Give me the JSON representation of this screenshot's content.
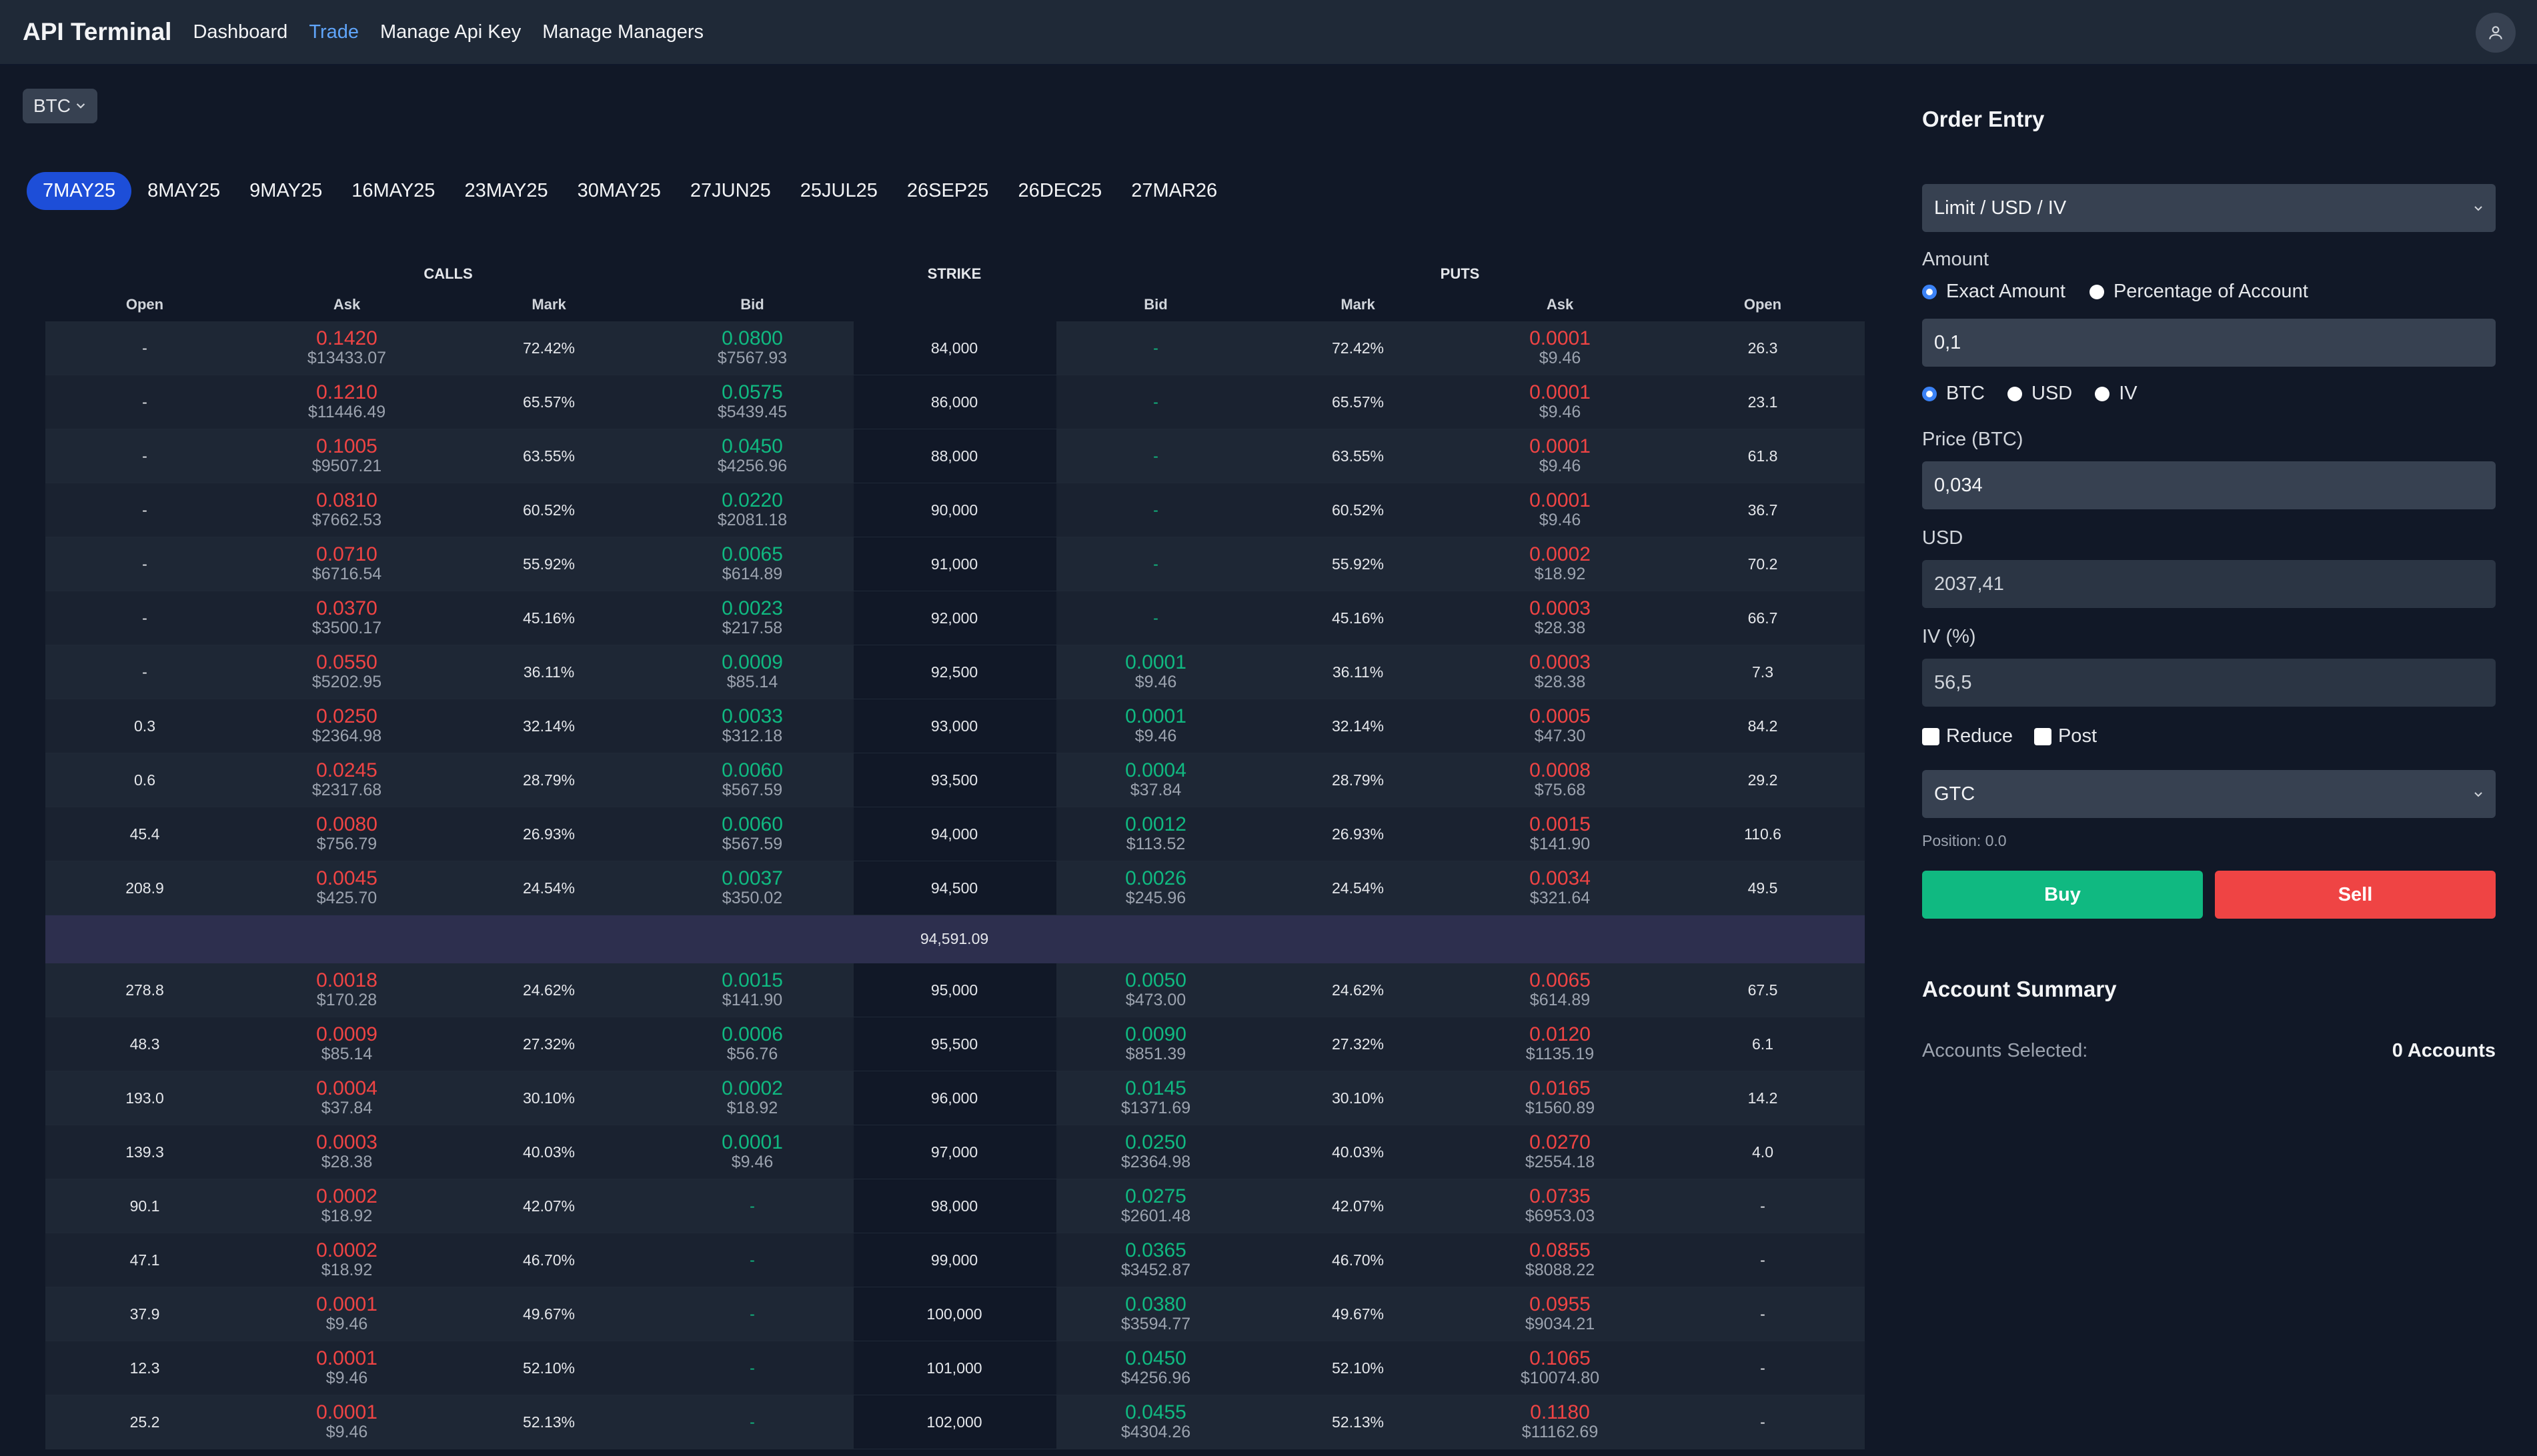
{
  "nav": {
    "brand": "API Terminal",
    "links": [
      "Dashboard",
      "Trade",
      "Manage Api Key",
      "Manage Managers"
    ],
    "active": "Trade"
  },
  "asset_select": {
    "value": "BTC"
  },
  "expiries": [
    "7MAY25",
    "8MAY25",
    "9MAY25",
    "16MAY25",
    "23MAY25",
    "30MAY25",
    "27JUN25",
    "25JUL25",
    "26SEP25",
    "26DEC25",
    "27MAR26"
  ],
  "active_expiry": "7MAY25",
  "table": {
    "group_headers": {
      "calls": "CALLS",
      "strike": "STRIKE",
      "puts": "PUTS"
    },
    "columns": [
      "Open",
      "Ask",
      "Mark",
      "Bid",
      "",
      "Bid",
      "Mark",
      "Ask",
      "Open"
    ],
    "atm_price": "94,591.09",
    "rows_above": [
      {
        "c_open": "-",
        "c_ask": "0.1420",
        "c_ask_usd": "$13433.07",
        "c_mark": "72.42%",
        "c_bid": "0.0800",
        "c_bid_usd": "$7567.93",
        "strike": "84,000",
        "p_bid": "-",
        "p_bid_usd": "",
        "p_mark": "72.42%",
        "p_ask": "0.0001",
        "p_ask_usd": "$9.46",
        "p_open": "26.3"
      },
      {
        "c_open": "-",
        "c_ask": "0.1210",
        "c_ask_usd": "$11446.49",
        "c_mark": "65.57%",
        "c_bid": "0.0575",
        "c_bid_usd": "$5439.45",
        "strike": "86,000",
        "p_bid": "-",
        "p_bid_usd": "",
        "p_mark": "65.57%",
        "p_ask": "0.0001",
        "p_ask_usd": "$9.46",
        "p_open": "23.1"
      },
      {
        "c_open": "-",
        "c_ask": "0.1005",
        "c_ask_usd": "$9507.21",
        "c_mark": "63.55%",
        "c_bid": "0.0450",
        "c_bid_usd": "$4256.96",
        "strike": "88,000",
        "p_bid": "-",
        "p_bid_usd": "",
        "p_mark": "63.55%",
        "p_ask": "0.0001",
        "p_ask_usd": "$9.46",
        "p_open": "61.8"
      },
      {
        "c_open": "-",
        "c_ask": "0.0810",
        "c_ask_usd": "$7662.53",
        "c_mark": "60.52%",
        "c_bid": "0.0220",
        "c_bid_usd": "$2081.18",
        "strike": "90,000",
        "p_bid": "-",
        "p_bid_usd": "",
        "p_mark": "60.52%",
        "p_ask": "0.0001",
        "p_ask_usd": "$9.46",
        "p_open": "36.7"
      },
      {
        "c_open": "-",
        "c_ask": "0.0710",
        "c_ask_usd": "$6716.54",
        "c_mark": "55.92%",
        "c_bid": "0.0065",
        "c_bid_usd": "$614.89",
        "strike": "91,000",
        "p_bid": "-",
        "p_bid_usd": "",
        "p_mark": "55.92%",
        "p_ask": "0.0002",
        "p_ask_usd": "$18.92",
        "p_open": "70.2"
      },
      {
        "c_open": "-",
        "c_ask": "0.0370",
        "c_ask_usd": "$3500.17",
        "c_mark": "45.16%",
        "c_bid": "0.0023",
        "c_bid_usd": "$217.58",
        "strike": "92,000",
        "p_bid": "-",
        "p_bid_usd": "",
        "p_mark": "45.16%",
        "p_ask": "0.0003",
        "p_ask_usd": "$28.38",
        "p_open": "66.7"
      },
      {
        "c_open": "-",
        "c_ask": "0.0550",
        "c_ask_usd": "$5202.95",
        "c_mark": "36.11%",
        "c_bid": "0.0009",
        "c_bid_usd": "$85.14",
        "strike": "92,500",
        "p_bid": "0.0001",
        "p_bid_usd": "$9.46",
        "p_mark": "36.11%",
        "p_ask": "0.0003",
        "p_ask_usd": "$28.38",
        "p_open": "7.3"
      },
      {
        "c_open": "0.3",
        "c_ask": "0.0250",
        "c_ask_usd": "$2364.98",
        "c_mark": "32.14%",
        "c_bid": "0.0033",
        "c_bid_usd": "$312.18",
        "strike": "93,000",
        "p_bid": "0.0001",
        "p_bid_usd": "$9.46",
        "p_mark": "32.14%",
        "p_ask": "0.0005",
        "p_ask_usd": "$47.30",
        "p_open": "84.2"
      },
      {
        "c_open": "0.6",
        "c_ask": "0.0245",
        "c_ask_usd": "$2317.68",
        "c_mark": "28.79%",
        "c_bid": "0.0060",
        "c_bid_usd": "$567.59",
        "strike": "93,500",
        "p_bid": "0.0004",
        "p_bid_usd": "$37.84",
        "p_mark": "28.79%",
        "p_ask": "0.0008",
        "p_ask_usd": "$75.68",
        "p_open": "29.2"
      },
      {
        "c_open": "45.4",
        "c_ask": "0.0080",
        "c_ask_usd": "$756.79",
        "c_mark": "26.93%",
        "c_bid": "0.0060",
        "c_bid_usd": "$567.59",
        "strike": "94,000",
        "p_bid": "0.0012",
        "p_bid_usd": "$113.52",
        "p_mark": "26.93%",
        "p_ask": "0.0015",
        "p_ask_usd": "$141.90",
        "p_open": "110.6"
      },
      {
        "c_open": "208.9",
        "c_ask": "0.0045",
        "c_ask_usd": "$425.70",
        "c_mark": "24.54%",
        "c_bid": "0.0037",
        "c_bid_usd": "$350.02",
        "strike": "94,500",
        "p_bid": "0.0026",
        "p_bid_usd": "$245.96",
        "p_mark": "24.54%",
        "p_ask": "0.0034",
        "p_ask_usd": "$321.64",
        "p_open": "49.5"
      }
    ],
    "rows_below": [
      {
        "c_open": "278.8",
        "c_ask": "0.0018",
        "c_ask_usd": "$170.28",
        "c_mark": "24.62%",
        "c_bid": "0.0015",
        "c_bid_usd": "$141.90",
        "strike": "95,000",
        "p_bid": "0.0050",
        "p_bid_usd": "$473.00",
        "p_mark": "24.62%",
        "p_ask": "0.0065",
        "p_ask_usd": "$614.89",
        "p_open": "67.5"
      },
      {
        "c_open": "48.3",
        "c_ask": "0.0009",
        "c_ask_usd": "$85.14",
        "c_mark": "27.32%",
        "c_bid": "0.0006",
        "c_bid_usd": "$56.76",
        "strike": "95,500",
        "p_bid": "0.0090",
        "p_bid_usd": "$851.39",
        "p_mark": "27.32%",
        "p_ask": "0.0120",
        "p_ask_usd": "$1135.19",
        "p_open": "6.1"
      },
      {
        "c_open": "193.0",
        "c_ask": "0.0004",
        "c_ask_usd": "$37.84",
        "c_mark": "30.10%",
        "c_bid": "0.0002",
        "c_bid_usd": "$18.92",
        "strike": "96,000",
        "p_bid": "0.0145",
        "p_bid_usd": "$1371.69",
        "p_mark": "30.10%",
        "p_ask": "0.0165",
        "p_ask_usd": "$1560.89",
        "p_open": "14.2"
      },
      {
        "c_open": "139.3",
        "c_ask": "0.0003",
        "c_ask_usd": "$28.38",
        "c_mark": "40.03%",
        "c_bid": "0.0001",
        "c_bid_usd": "$9.46",
        "strike": "97,000",
        "p_bid": "0.0250",
        "p_bid_usd": "$2364.98",
        "p_mark": "40.03%",
        "p_ask": "0.0270",
        "p_ask_usd": "$2554.18",
        "p_open": "4.0"
      },
      {
        "c_open": "90.1",
        "c_ask": "0.0002",
        "c_ask_usd": "$18.92",
        "c_mark": "42.07%",
        "c_bid": "-",
        "c_bid_usd": "",
        "strike": "98,000",
        "p_bid": "0.0275",
        "p_bid_usd": "$2601.48",
        "p_mark": "42.07%",
        "p_ask": "0.0735",
        "p_ask_usd": "$6953.03",
        "p_open": "-"
      },
      {
        "c_open": "47.1",
        "c_ask": "0.0002",
        "c_ask_usd": "$18.92",
        "c_mark": "46.70%",
        "c_bid": "-",
        "c_bid_usd": "",
        "strike": "99,000",
        "p_bid": "0.0365",
        "p_bid_usd": "$3452.87",
        "p_mark": "46.70%",
        "p_ask": "0.0855",
        "p_ask_usd": "$8088.22",
        "p_open": "-"
      },
      {
        "c_open": "37.9",
        "c_ask": "0.0001",
        "c_ask_usd": "$9.46",
        "c_mark": "49.67%",
        "c_bid": "-",
        "c_bid_usd": "",
        "strike": "100,000",
        "p_bid": "0.0380",
        "p_bid_usd": "$3594.77",
        "p_mark": "49.67%",
        "p_ask": "0.0955",
        "p_ask_usd": "$9034.21",
        "p_open": "-"
      },
      {
        "c_open": "12.3",
        "c_ask": "0.0001",
        "c_ask_usd": "$9.46",
        "c_mark": "52.10%",
        "c_bid": "-",
        "c_bid_usd": "",
        "strike": "101,000",
        "p_bid": "0.0450",
        "p_bid_usd": "$4256.96",
        "p_mark": "52.10%",
        "p_ask": "0.1065",
        "p_ask_usd": "$10074.80",
        "p_open": "-"
      },
      {
        "c_open": "25.2",
        "c_ask": "0.0001",
        "c_ask_usd": "$9.46",
        "c_mark": "52.13%",
        "c_bid": "-",
        "c_bid_usd": "",
        "strike": "102,000",
        "p_bid": "0.0455",
        "p_bid_usd": "$4304.26",
        "p_mark": "52.13%",
        "p_ask": "0.1180",
        "p_ask_usd": "$11162.69",
        "p_open": "-"
      }
    ]
  },
  "order_entry": {
    "title": "Order Entry",
    "order_type": "Limit / USD / IV",
    "amount_label": "Amount",
    "amount_modes": [
      "Exact Amount",
      "Percentage of Account"
    ],
    "amount_value": "0,1",
    "units": [
      "BTC",
      "USD",
      "IV"
    ],
    "price_label": "Price (BTC)",
    "price_value": "0,034",
    "usd_label": "USD",
    "usd_value": "2037,41",
    "iv_label": "IV (%)",
    "iv_value": "56,5",
    "reduce_label": "Reduce",
    "post_label": "Post",
    "tif": "GTC",
    "position": "Position: 0.0",
    "buy_label": "Buy",
    "sell_label": "Sell"
  },
  "account_summary": {
    "title": "Account Summary",
    "selected_label": "Accounts Selected:",
    "selected_value": "0 Accounts"
  },
  "colors": {
    "bid_green": "#10b981",
    "ask_red": "#ef4444",
    "accent_blue": "#1d4ed8",
    "buy": "#10b981",
    "sell": "#ef4444"
  },
  "icons": {
    "user": "user-icon",
    "chevron": "chevron-down-icon"
  }
}
